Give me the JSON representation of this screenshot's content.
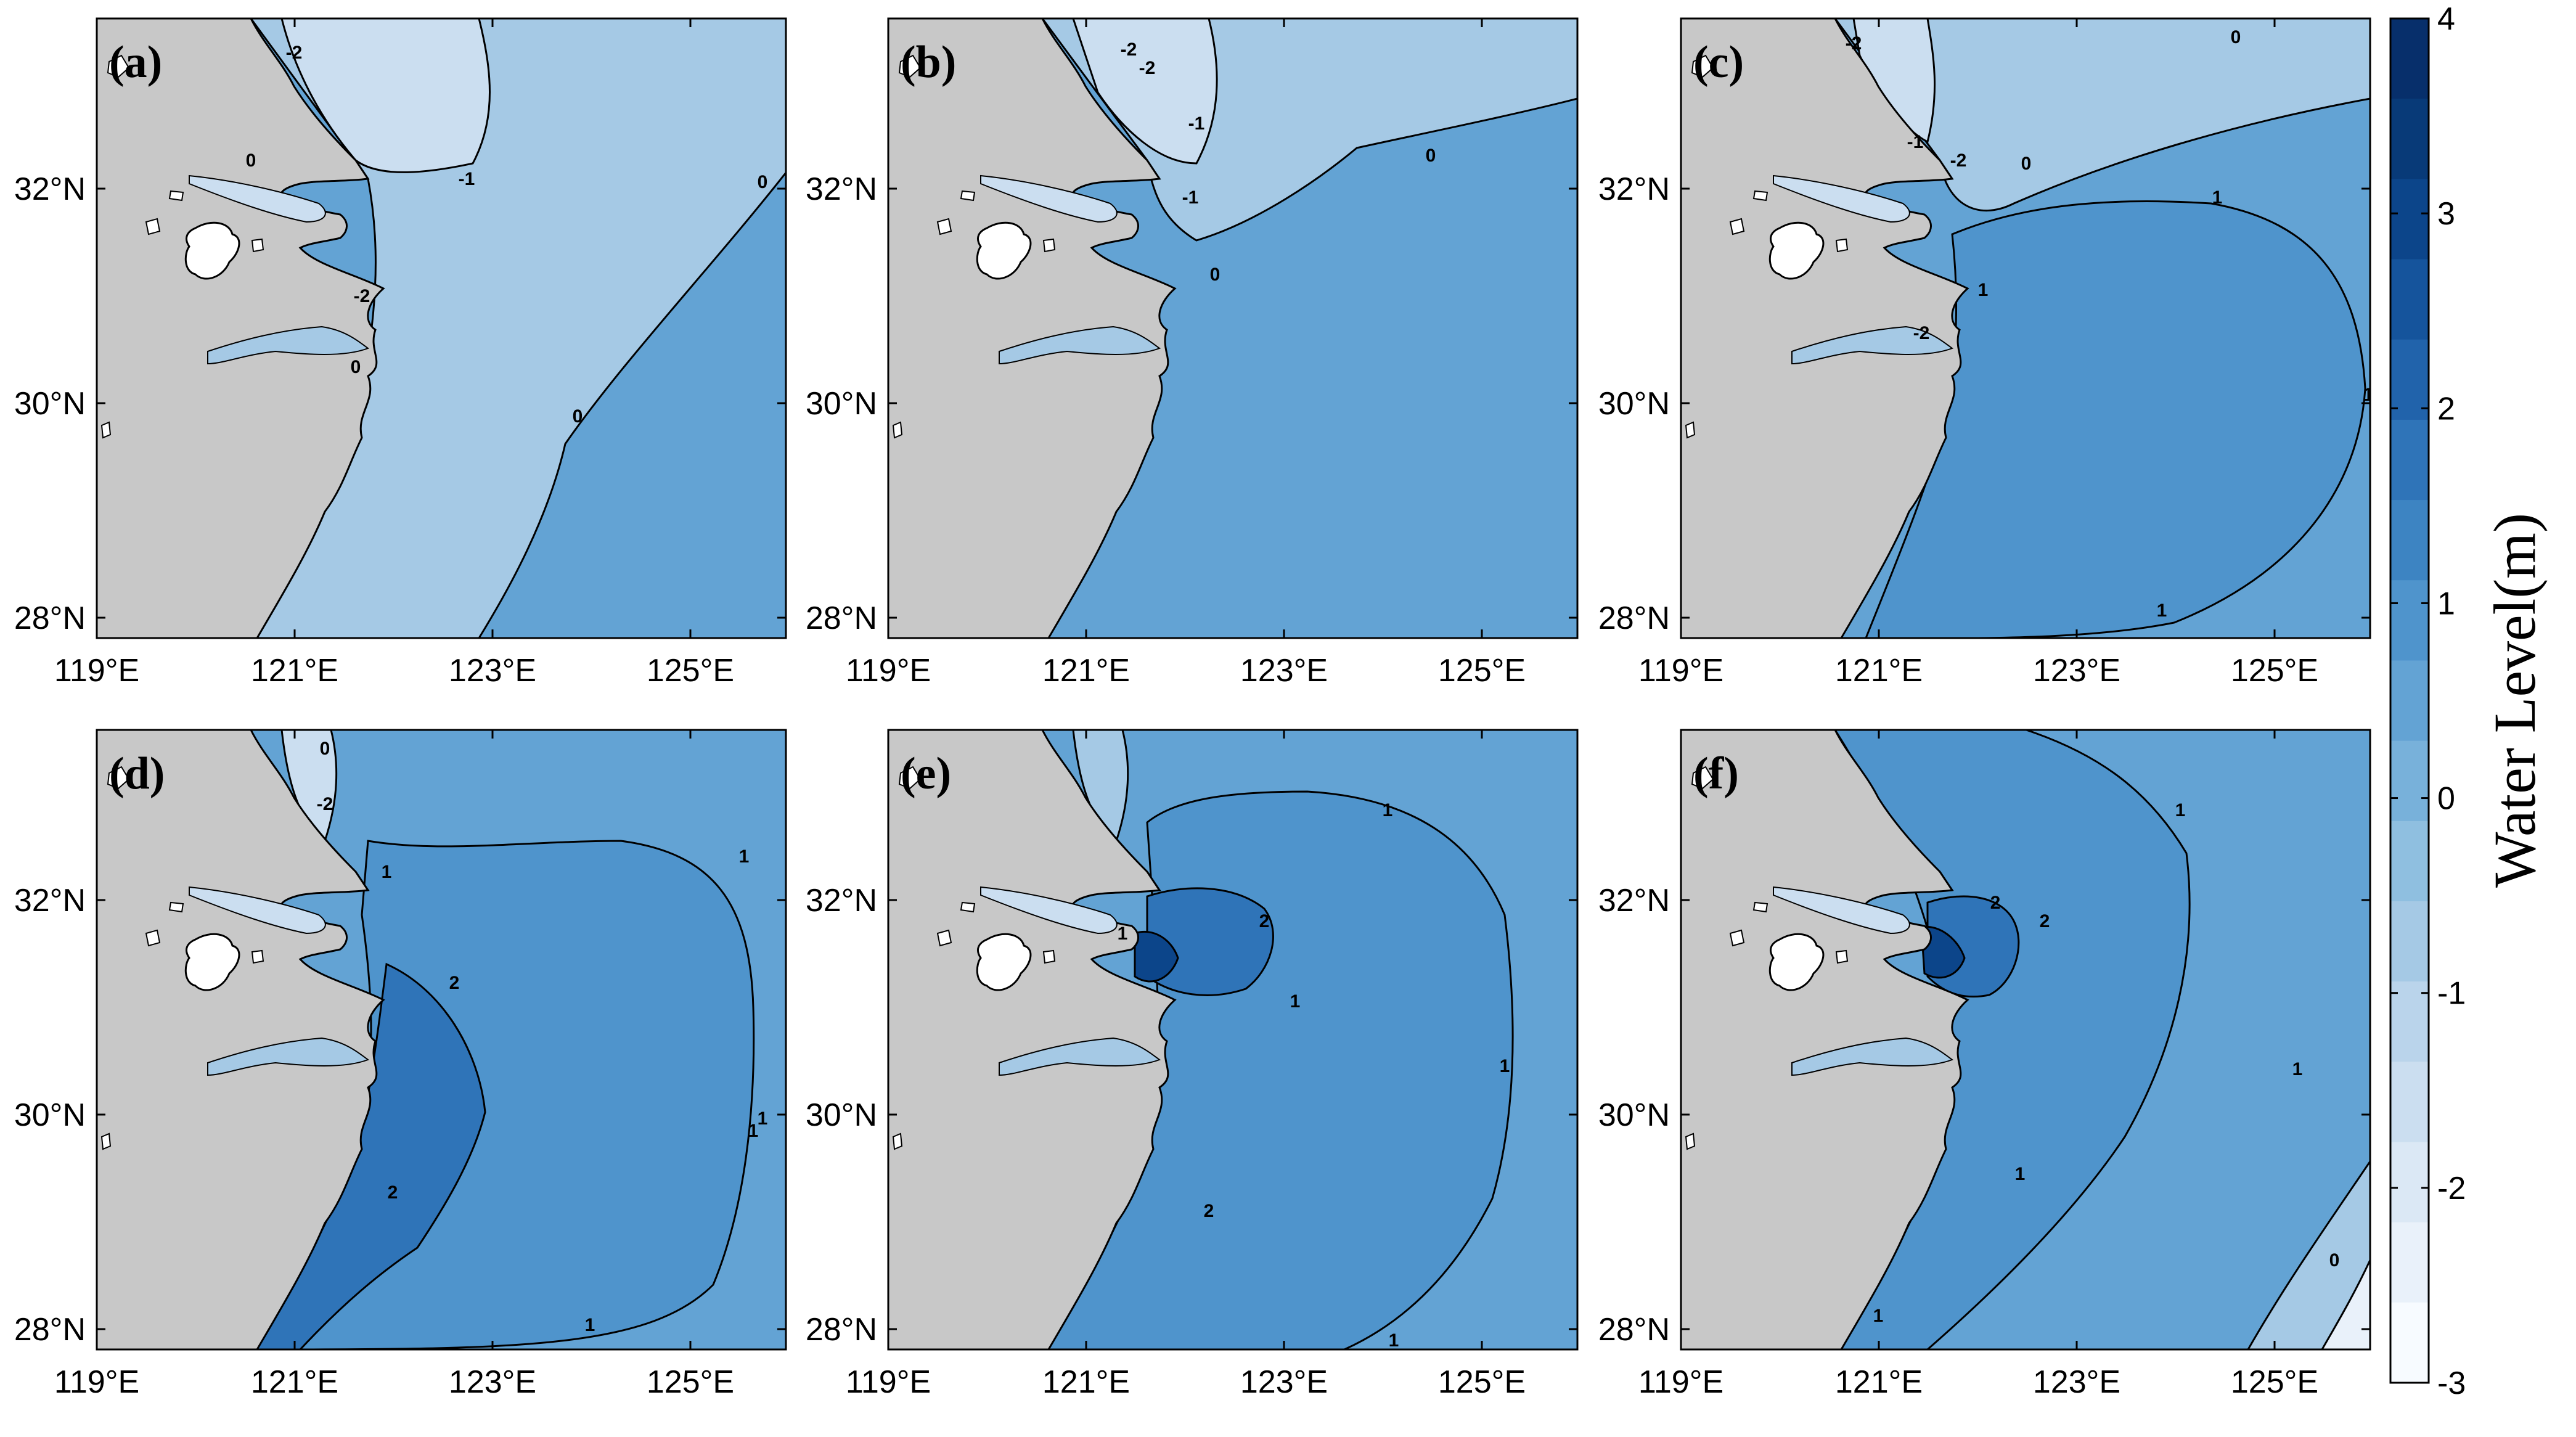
{
  "figure": {
    "panels": [
      {
        "label": "(a)",
        "contour_labels": [
          "-2",
          "-1",
          "-2",
          "0",
          "0",
          "0",
          "0"
        ]
      },
      {
        "label": "(b)",
        "contour_labels": [
          "-2",
          "-2",
          "-1",
          "0",
          "0",
          "-1"
        ]
      },
      {
        "label": "(c)",
        "contour_labels": [
          "-2",
          "-1",
          "-2",
          "0",
          "0",
          "1",
          "1",
          "1",
          "-2",
          "1"
        ]
      },
      {
        "label": "(d)",
        "contour_labels": [
          "0",
          "-2",
          "1",
          "1",
          "2",
          "1",
          "1",
          "2",
          "1"
        ]
      },
      {
        "label": "(e)",
        "contour_labels": [
          "1",
          "1",
          "2",
          "1",
          "1",
          "1",
          "2"
        ]
      },
      {
        "label": "(f)",
        "contour_labels": [
          "1",
          "2",
          "2",
          "1",
          "1",
          "0",
          "1"
        ]
      }
    ],
    "axes": {
      "x_ticks": [
        "119°E",
        "121°E",
        "123°E",
        "125°E"
      ],
      "y_ticks": [
        "32°N",
        "30°N",
        "28°N"
      ]
    },
    "colorbar": {
      "title": "Water Level(m)",
      "ticks": [
        "4",
        "3",
        "2",
        "1",
        "0",
        "-1",
        "-2",
        "-3"
      ],
      "range": [
        -3,
        4
      ],
      "colors": [
        "#f7fbff",
        "#e9f1fa",
        "#dbe8f5",
        "#cbdef0",
        "#bad4eb",
        "#a5c9e5",
        "#8fbfe0",
        "#78b1da",
        "#63a3d4",
        "#4f94cc",
        "#3d84c2",
        "#2f74b8",
        "#2163ab",
        "#15549c",
        "#0c458a",
        "#083a78",
        "#072f6b"
      ],
      "land": "#c8c8c8"
    }
  }
}
